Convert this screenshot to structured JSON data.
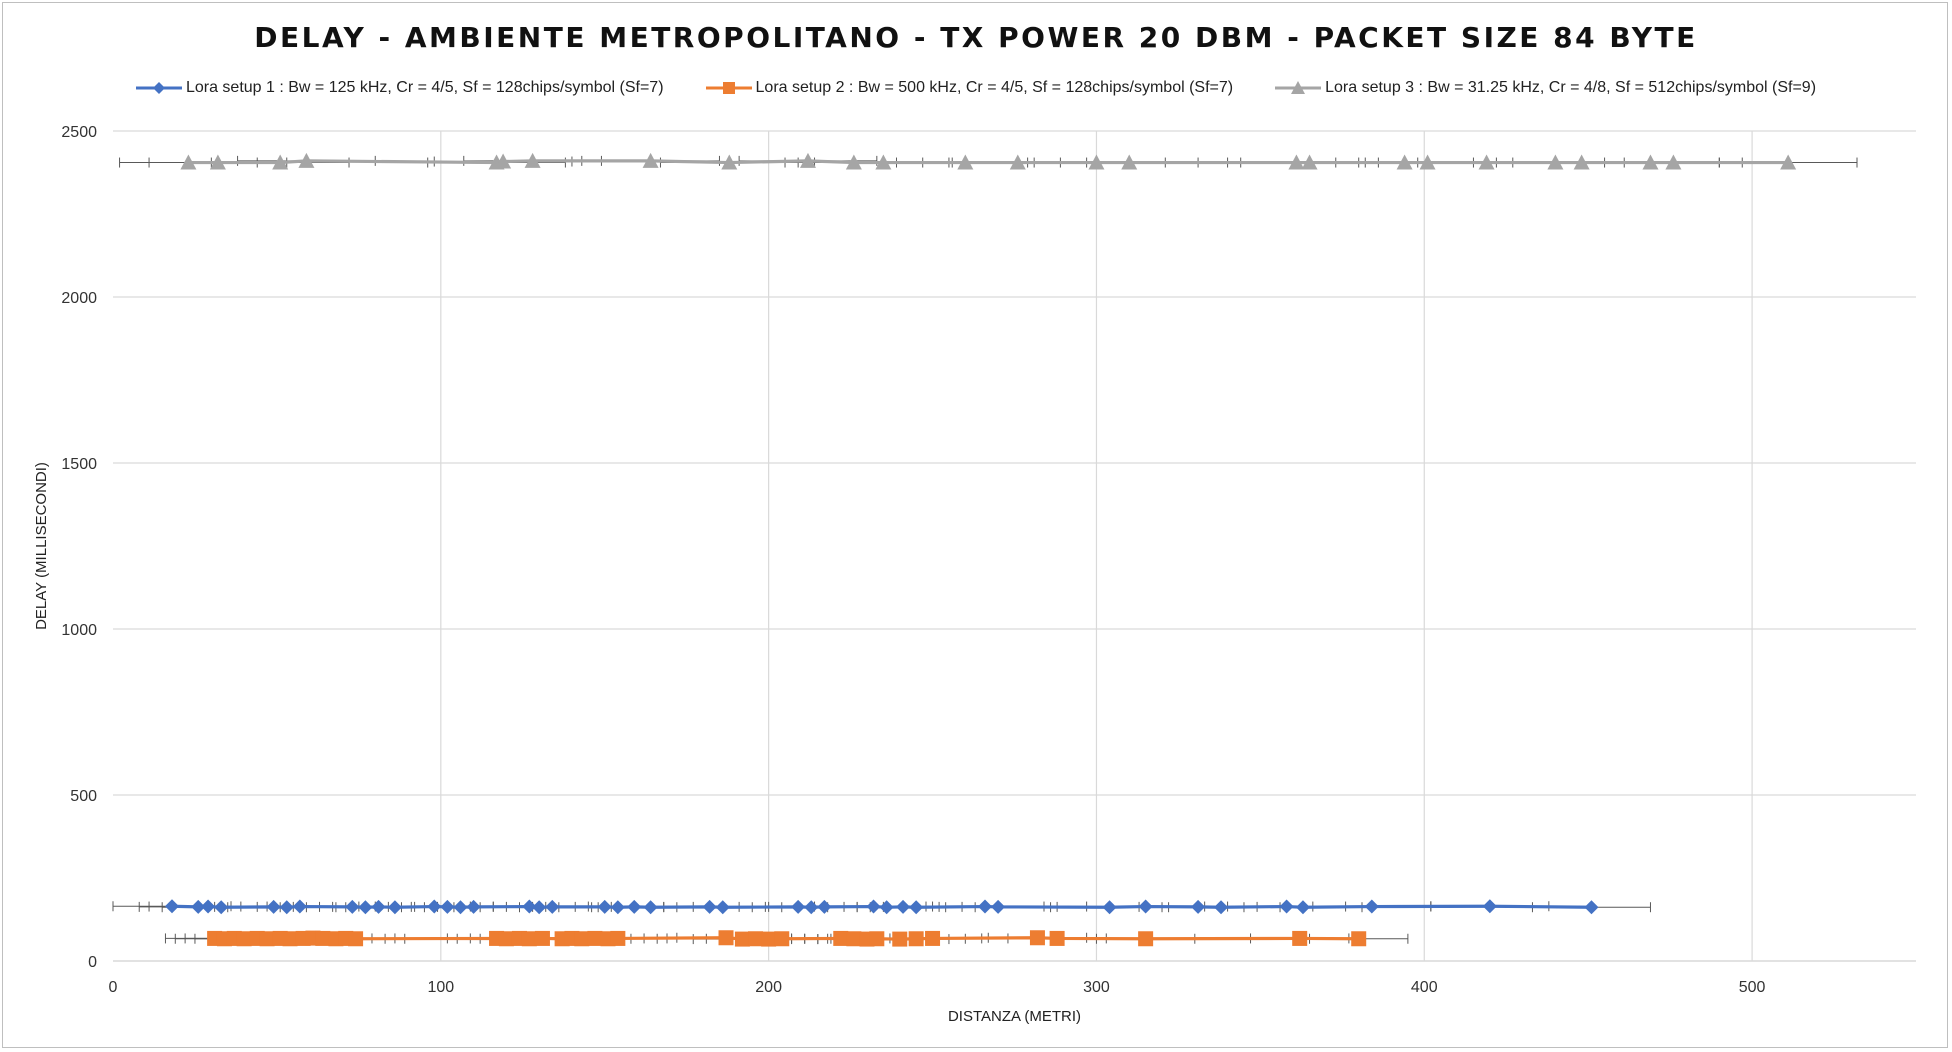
{
  "chart_data": {
    "type": "line",
    "title": "DELAY - AMBIENTE METROPOLITANO - TX POWER 20 DBM - PACKET SIZE 84 BYTE",
    "xlabel": "DISTANZA (METRI)",
    "ylabel": "DELAY (MILLISECONDI)",
    "xlim": [
      0,
      550
    ],
    "ylim": [
      0,
      2500
    ],
    "x_ticks": [
      "0",
      "100",
      "200",
      "300",
      "400",
      "500"
    ],
    "y_ticks": [
      "0",
      "500",
      "1000",
      "1500",
      "2000",
      "2500"
    ],
    "grid": true,
    "error_bars": "horizontal",
    "legend_position": "top",
    "series": [
      {
        "name": "Lora setup 1 : Bw = 125 kHz, Cr = 4/5, Sf = 128chips/symbol (Sf=7)",
        "color": "#4472C4",
        "marker": "diamond",
        "x": [
          18,
          26,
          29,
          33,
          49,
          53,
          57,
          73,
          77,
          81,
          86,
          98,
          102,
          106,
          110,
          127,
          130,
          134,
          150,
          154,
          159,
          164,
          182,
          186,
          209,
          213,
          217,
          232,
          236,
          241,
          245,
          266,
          270,
          304,
          315,
          331,
          338,
          358,
          363,
          384,
          420,
          451
        ],
        "y": [
          165,
          163,
          164,
          162,
          163,
          162,
          164,
          163,
          162,
          163,
          162,
          164,
          163,
          162,
          163,
          164,
          162,
          163,
          163,
          162,
          163,
          162,
          163,
          162,
          163,
          162,
          163,
          164,
          162,
          163,
          162,
          164,
          163,
          162,
          164,
          163,
          162,
          164,
          162,
          164,
          165,
          162
        ],
        "xerr": 18
      },
      {
        "name": "Lora setup 2 : Bw = 500 kHz, Cr = 4/5, Sf = 128chips/symbol (Sf=7)",
        "color": "#ED7D31",
        "marker": "square",
        "x": [
          31,
          34,
          37,
          40,
          44,
          47,
          51,
          54,
          58,
          61,
          64,
          68,
          71,
          74,
          117,
          120,
          124,
          127,
          131,
          137,
          140,
          143,
          147,
          151,
          154,
          187,
          192,
          196,
          200,
          204,
          222,
          226,
          230,
          233,
          240,
          245,
          250,
          282,
          288,
          315,
          362,
          380
        ],
        "y": [
          68,
          67,
          68,
          67,
          68,
          67,
          68,
          67,
          68,
          69,
          68,
          67,
          68,
          67,
          68,
          67,
          68,
          67,
          68,
          67,
          68,
          67,
          68,
          67,
          68,
          70,
          66,
          67,
          66,
          67,
          68,
          67,
          66,
          67,
          66,
          67,
          68,
          70,
          68,
          67,
          68,
          67
        ],
        "xerr": 15
      },
      {
        "name": "Lora setup 3 : Bw = 31.25 kHz, Cr = 4/8, Sf = 512chips/symbol (Sf=9)",
        "color": "#A5A5A5",
        "marker": "triangle",
        "x": [
          23,
          32,
          51,
          59,
          117,
          119,
          128,
          164,
          188,
          212,
          226,
          235,
          260,
          276,
          300,
          310,
          361,
          365,
          394,
          401,
          419,
          440,
          448,
          469,
          476,
          511
        ],
        "y": [
          2405,
          2405,
          2405,
          2410,
          2405,
          2408,
          2410,
          2410,
          2405,
          2410,
          2405,
          2405,
          2405,
          2405,
          2405,
          2405,
          2405,
          2405,
          2405,
          2405,
          2405,
          2405,
          2405,
          2405,
          2405,
          2405
        ],
        "xerr": 21
      }
    ]
  }
}
